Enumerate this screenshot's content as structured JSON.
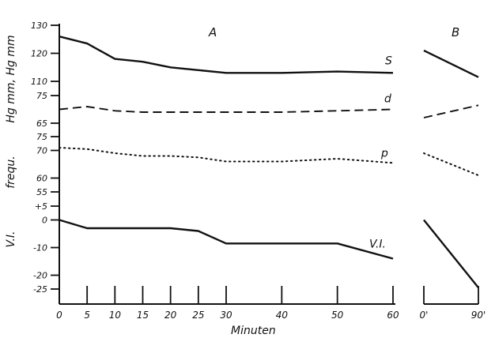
{
  "chart_data": {
    "type": "line",
    "panels": {
      "a": "A",
      "b": "B"
    },
    "xlabel": "Minuten",
    "x": [
      0,
      5,
      10,
      15,
      20,
      25,
      30,
      40,
      50,
      60
    ],
    "x_ticklabels": [
      "0",
      "5",
      "10",
      "15",
      "20",
      "25",
      "30",
      "40",
      "50",
      "60"
    ],
    "b_ticklabels": [
      "0'",
      "90'"
    ],
    "ylabels": {
      "pressure": "Hg mm, Hg mm",
      "pulse": "frequ.",
      "vi": "V.I."
    },
    "subplots": [
      {
        "id": "systolic",
        "yticks": [
          "130",
          "120",
          "110"
        ],
        "ylim": [
          110,
          130
        ],
        "series": [
          {
            "name": "S",
            "x": [
              0,
              5,
              10,
              15,
              20,
              25,
              30,
              40,
              50,
              60
            ],
            "values": [
              126,
              123.5,
              118,
              117,
              115,
              114,
              113,
              113,
              113.5,
              113
            ],
            "b_values": [
              121,
              111.5
            ]
          }
        ]
      },
      {
        "id": "diastolic",
        "yticks": [
          "75",
          "65"
        ],
        "ylim": [
          65,
          75
        ],
        "series": [
          {
            "name": "d",
            "x": [
              0,
              5,
              10,
              15,
              20,
              25,
              30,
              40,
              50,
              60
            ],
            "values": [
              70,
              71,
              69.5,
              69,
              69,
              69,
              69,
              69,
              69.5,
              70
            ],
            "b_values": [
              67,
              71.5
            ]
          }
        ]
      },
      {
        "id": "pulse",
        "yticks": [
          "75",
          "70",
          "60",
          "55"
        ],
        "ylim": [
          55,
          75
        ],
        "series": [
          {
            "name": "p",
            "x": [
              0,
              5,
              10,
              15,
              20,
              25,
              30,
              40,
              50,
              60
            ],
            "values": [
              71,
              70.5,
              69,
              68,
              68,
              67.5,
              66,
              66,
              67,
              65.5
            ],
            "b_values": [
              69,
              61
            ]
          }
        ]
      },
      {
        "id": "vi",
        "yticks": [
          "+5",
          "0",
          "-10",
          "-20",
          "-25"
        ],
        "ylim": [
          -25,
          5
        ],
        "series": [
          {
            "name": "V.I.",
            "x": [
              0,
              5,
              10,
              15,
              20,
              25,
              30,
              40,
              50,
              60
            ],
            "values": [
              0,
              -3,
              -3,
              -3,
              -3,
              -4,
              -8.5,
              -8.5,
              -8.5,
              -14
            ],
            "b_values": [
              0,
              -24.5
            ]
          }
        ]
      }
    ],
    "grid": false,
    "legend": "inline labels at right end of each curve"
  }
}
